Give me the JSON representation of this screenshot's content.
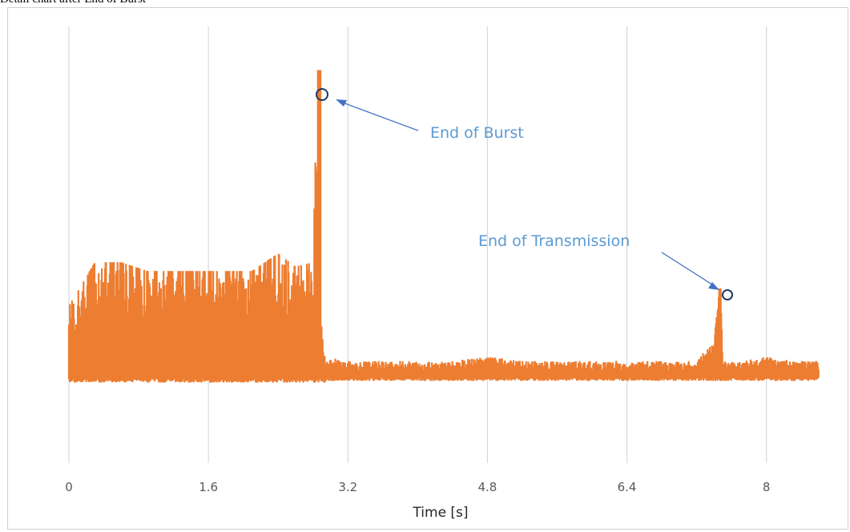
{
  "caption": "Detail chart after End of Burst",
  "chart_data": {
    "type": "line",
    "title": "",
    "xlabel": "Time [s]",
    "ylabel": "",
    "xlim": [
      0,
      8.6
    ],
    "ylim": [
      -1.0,
      4.0
    ],
    "xticks": [
      "0",
      "1.6",
      "3.2",
      "4.8",
      "6.4",
      "8"
    ],
    "xtick_values": [
      0,
      1.6,
      3.2,
      4.8,
      6.4,
      8
    ],
    "grid": "vertical",
    "legend": "none",
    "series": [
      {
        "color": "#ed7d31",
        "x": [
          0,
          0.3,
          0.6,
          0.9,
          1.2,
          1.5,
          1.8,
          2.1,
          2.4,
          2.6,
          2.8,
          2.85,
          2.9,
          2.95,
          3.2,
          3.6,
          4.0,
          4.4,
          4.8,
          5.2,
          5.6,
          6.0,
          6.4,
          6.8,
          7.2,
          7.4,
          7.47,
          7.5,
          7.7,
          8.0,
          8.3,
          8.6
        ],
        "y": [
          0.8,
          1.3,
          1.3,
          1.2,
          1.2,
          1.2,
          1.2,
          1.2,
          1.4,
          1.25,
          1.3,
          3.5,
          0.5,
          0.1,
          0.05,
          0.05,
          0.05,
          0.05,
          0.1,
          0.05,
          0.05,
          0.05,
          0.05,
          0.05,
          0.05,
          0.3,
          1.0,
          0.05,
          0.05,
          0.1,
          0.05,
          0.05
        ]
      }
    ],
    "annotations": [
      {
        "text": "End of Burst",
        "x": 2.87,
        "y": 3.5
      },
      {
        "text": "End of Transmission",
        "x": 7.47,
        "y": 1.0
      }
    ]
  }
}
